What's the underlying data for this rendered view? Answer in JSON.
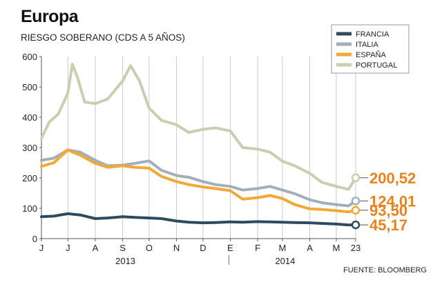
{
  "title": "Europa",
  "subtitle": "RIESGO SOBERANO (CDS A 5 AÑOS)",
  "source": "FUENTE: BLOOMBERG",
  "chart_data": {
    "type": "line",
    "title": "Europa",
    "subtitle": "RIESGO SOBERANO (CDS A 5 AÑOS)",
    "xlabel": "",
    "ylabel": "",
    "ylim": [
      0,
      600
    ],
    "yticks": [
      0,
      100,
      200,
      300,
      400,
      500,
      600
    ],
    "grid": "vertical month lines",
    "legend_position": "top-right",
    "x_tick_labels": [
      "J",
      "J",
      "A",
      "S",
      "O",
      "N",
      "D",
      "E",
      "F",
      "M",
      "A",
      "M",
      "23"
    ],
    "x_tick_dates": [
      "2013-06-01",
      "2013-07-01",
      "2013-08-01",
      "2013-09-01",
      "2013-10-01",
      "2013-11-01",
      "2013-12-01",
      "2014-01-01",
      "2014-02-01",
      "2014-03-01",
      "2014-04-01",
      "2014-05-01",
      "2014-05-23"
    ],
    "year_labels": [
      {
        "label": "2013",
        "date": "2013-09-01"
      },
      {
        "label": "2014",
        "date": "2014-03-01"
      }
    ],
    "series": [
      {
        "name": "FRANCIA",
        "color": "#2e4a5e",
        "last_value": "45,17",
        "x": [
          "2013-06-01",
          "2013-06-15",
          "2013-07-01",
          "2013-07-15",
          "2013-08-01",
          "2013-08-15",
          "2013-09-01",
          "2013-09-15",
          "2013-10-01",
          "2013-10-15",
          "2013-11-01",
          "2013-11-15",
          "2013-12-01",
          "2013-12-15",
          "2014-01-01",
          "2014-01-15",
          "2014-02-01",
          "2014-02-15",
          "2014-03-01",
          "2014-03-15",
          "2014-04-01",
          "2014-04-15",
          "2014-05-01",
          "2014-05-15",
          "2014-05-23"
        ],
        "values": [
          72,
          74,
          82,
          78,
          66,
          68,
          72,
          70,
          68,
          66,
          58,
          54,
          52,
          53,
          55,
          54,
          56,
          55,
          54,
          53,
          52,
          50,
          48,
          45,
          45.17
        ]
      },
      {
        "name": "ITALIA",
        "color": "#a3aebb",
        "last_value": "124,01",
        "x": [
          "2013-06-01",
          "2013-06-15",
          "2013-07-01",
          "2013-07-15",
          "2013-08-01",
          "2013-08-15",
          "2013-09-01",
          "2013-09-15",
          "2013-10-01",
          "2013-10-15",
          "2013-11-01",
          "2013-11-15",
          "2013-12-01",
          "2013-12-15",
          "2014-01-01",
          "2014-01-15",
          "2014-02-01",
          "2014-02-15",
          "2014-03-01",
          "2014-03-15",
          "2014-04-01",
          "2014-04-15",
          "2014-05-01",
          "2014-05-15",
          "2014-05-23"
        ],
        "values": [
          258,
          265,
          292,
          285,
          258,
          240,
          242,
          248,
          256,
          225,
          208,
          202,
          188,
          178,
          172,
          160,
          165,
          172,
          160,
          148,
          128,
          118,
          112,
          108,
          124.01
        ]
      },
      {
        "name": "ESPAÑA",
        "color": "#f1a934",
        "last_value": "93,50",
        "x": [
          "2013-06-01",
          "2013-06-15",
          "2013-07-01",
          "2013-07-15",
          "2013-08-01",
          "2013-08-15",
          "2013-09-01",
          "2013-09-15",
          "2013-10-01",
          "2013-10-15",
          "2013-11-01",
          "2013-11-15",
          "2013-12-01",
          "2013-12-15",
          "2014-01-01",
          "2014-01-15",
          "2014-02-01",
          "2014-02-15",
          "2014-03-01",
          "2014-03-15",
          "2014-04-01",
          "2014-04-15",
          "2014-05-01",
          "2014-05-15",
          "2014-05-23"
        ],
        "values": [
          238,
          250,
          292,
          275,
          248,
          235,
          240,
          235,
          232,
          205,
          188,
          178,
          170,
          165,
          158,
          130,
          135,
          142,
          132,
          112,
          98,
          96,
          92,
          88,
          93.5
        ]
      },
      {
        "name": "PORTUGAL",
        "color": "#c8ceb0",
        "last_value": "200,52",
        "x": [
          "2013-06-01",
          "2013-06-10",
          "2013-06-20",
          "2013-07-01",
          "2013-07-06",
          "2013-07-12",
          "2013-07-20",
          "2013-08-01",
          "2013-08-15",
          "2013-09-01",
          "2013-09-10",
          "2013-09-20",
          "2013-10-01",
          "2013-10-15",
          "2013-11-01",
          "2013-11-15",
          "2013-12-01",
          "2013-12-15",
          "2014-01-01",
          "2014-01-15",
          "2014-02-01",
          "2014-02-15",
          "2014-03-01",
          "2014-03-15",
          "2014-04-01",
          "2014-04-15",
          "2014-05-01",
          "2014-05-15",
          "2014-05-23"
        ],
        "values": [
          330,
          385,
          410,
          480,
          575,
          530,
          450,
          445,
          460,
          520,
          570,
          520,
          430,
          390,
          375,
          350,
          360,
          365,
          355,
          300,
          295,
          285,
          255,
          240,
          215,
          185,
          172,
          162,
          200.52
        ]
      }
    ]
  }
}
